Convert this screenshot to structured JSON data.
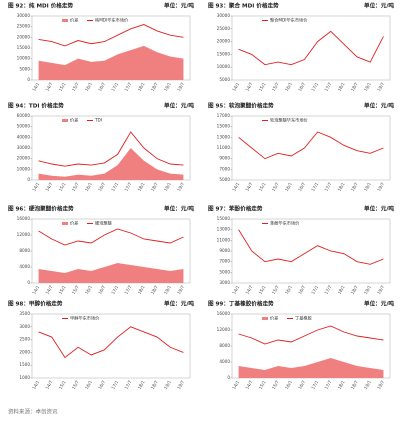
{
  "chart_data": [
    {
      "type": "line",
      "title": "图 92：纯 MDI 价格走势",
      "unit": "单位：元/吨",
      "categories": [
        "14/1",
        "14/7",
        "15/1",
        "15/7",
        "16/1",
        "16/7",
        "17/1",
        "17/7",
        "18/1",
        "18/7",
        "19/1",
        "19/7"
      ],
      "ylim": [
        0,
        30000
      ],
      "yticks": [
        0,
        5000,
        10000,
        15000,
        20000,
        25000,
        30000
      ],
      "series": [
        {
          "name": "价差",
          "type": "area",
          "color": "#f08080",
          "values": [
            9000,
            8000,
            7000,
            10000,
            8500,
            9000,
            12000,
            14000,
            16000,
            13000,
            11000,
            10000
          ]
        },
        {
          "name": "纯MDI华东市场价",
          "type": "line",
          "color": "#e02020",
          "values": [
            19000,
            18000,
            16000,
            18500,
            17000,
            18000,
            21000,
            24000,
            26000,
            23000,
            21000,
            20000
          ]
        }
      ]
    },
    {
      "type": "line",
      "title": "图 93：聚合 MDI 价格走势",
      "unit": "单位：元/吨",
      "categories": [
        "14/1",
        "14/7",
        "15/1",
        "15/7",
        "16/1",
        "16/7",
        "17/1",
        "17/7",
        "18/1",
        "18/7",
        "19/1",
        "19/7"
      ],
      "ylim": [
        5000,
        30000
      ],
      "yticks": [
        5000,
        10000,
        15000,
        20000,
        25000,
        30000
      ],
      "series": [
        {
          "name": "聚合MDI华东市场价",
          "type": "line",
          "color": "#e02020",
          "values": [
            17000,
            15000,
            11000,
            12000,
            11000,
            13000,
            20000,
            24000,
            19000,
            14000,
            12000,
            22000
          ]
        }
      ]
    },
    {
      "type": "line",
      "title": "图 94：TDI 价格走势",
      "unit": "单位：元/吨",
      "categories": [
        "14/1",
        "14/7",
        "15/1",
        "15/7",
        "16/1",
        "16/7",
        "17/1",
        "17/7",
        "18/1",
        "18/7",
        "19/1",
        "19/7"
      ],
      "ylim": [
        0,
        60000
      ],
      "yticks": [
        0,
        10000,
        20000,
        30000,
        40000,
        50000,
        60000
      ],
      "series": [
        {
          "name": "价差",
          "type": "area",
          "color": "#f08080",
          "values": [
            6000,
            4000,
            3000,
            5000,
            4000,
            6000,
            14000,
            30000,
            18000,
            10000,
            6000,
            5000
          ]
        },
        {
          "name": "TDI",
          "type": "line",
          "color": "#e02020",
          "values": [
            18000,
            15000,
            13000,
            15000,
            14000,
            16000,
            24000,
            45000,
            30000,
            20000,
            15000,
            14000
          ]
        }
      ]
    },
    {
      "type": "line",
      "title": "图 95：软泡聚醚价格走势",
      "unit": "单位：元/吨",
      "categories": [
        "14/1",
        "14/7",
        "15/1",
        "15/7",
        "16/1",
        "16/7",
        "17/1",
        "17/7",
        "18/1",
        "18/7",
        "19/1",
        "19/7"
      ],
      "ylim": [
        5000,
        17000
      ],
      "yticks": [
        5000,
        7000,
        9000,
        11000,
        13000,
        15000,
        17000
      ],
      "series": [
        {
          "name": "软泡聚醚华东市场价",
          "type": "line",
          "color": "#e02020",
          "values": [
            13000,
            11000,
            9000,
            10000,
            9500,
            11000,
            14000,
            13000,
            11500,
            10500,
            10000,
            11000
          ]
        }
      ]
    },
    {
      "type": "line",
      "title": "图 96：硬泡聚醚价格走势",
      "unit": "单位：元/吨",
      "categories": [
        "14/1",
        "14/7",
        "15/1",
        "15/7",
        "16/1",
        "16/7",
        "17/1",
        "17/7",
        "18/1",
        "18/7",
        "19/1",
        "19/7"
      ],
      "ylim": [
        0,
        16000
      ],
      "yticks": [
        0,
        4000,
        8000,
        12000,
        16000
      ],
      "series": [
        {
          "name": "价差",
          "type": "area",
          "color": "#f08080",
          "values": [
            3500,
            3000,
            2500,
            3500,
            3000,
            4000,
            5000,
            4500,
            4000,
            3500,
            3000,
            3500
          ]
        },
        {
          "name": "硬泡聚醚",
          "type": "line",
          "color": "#e02020",
          "values": [
            13000,
            11000,
            9500,
            10500,
            10000,
            12000,
            13500,
            12500,
            11000,
            10500,
            10000,
            11500
          ]
        }
      ]
    },
    {
      "type": "line",
      "title": "图 97：苯酚价格走势",
      "unit": "单位：元/吨",
      "categories": [
        "14/1",
        "14/7",
        "15/1",
        "15/7",
        "16/1",
        "16/7",
        "17/1",
        "17/7",
        "18/1",
        "18/7",
        "19/1",
        "19/7"
      ],
      "ylim": [
        3000,
        15000
      ],
      "yticks": [
        3000,
        5000,
        7000,
        9000,
        11000,
        13000,
        15000
      ],
      "series": [
        {
          "name": "苯酚华东市场价",
          "type": "line",
          "color": "#e02020",
          "values": [
            13000,
            9000,
            7000,
            7500,
            7000,
            8500,
            10000,
            9000,
            8500,
            7000,
            6500,
            7500
          ]
        }
      ]
    },
    {
      "type": "line",
      "title": "图 98：甲醇价格走势",
      "unit": "单位：元/吨",
      "categories": [
        "14/1",
        "14/7",
        "15/1",
        "15/7",
        "16/1",
        "16/7",
        "17/1",
        "17/7",
        "18/1",
        "18/7",
        "19/1",
        "19/7"
      ],
      "ylim": [
        1000,
        3500
      ],
      "yticks": [
        1000,
        1500,
        2000,
        2500,
        3000,
        3500
      ],
      "series": [
        {
          "name": "甲醇华东市场价",
          "type": "line",
          "color": "#e02020",
          "values": [
            2800,
            2600,
            1800,
            2200,
            1900,
            2100,
            2600,
            3000,
            2800,
            2600,
            2200,
            2000
          ]
        }
      ]
    },
    {
      "type": "line",
      "title": "图 99：丁基橡胶价格走势",
      "unit": "单位：元/吨",
      "categories": [
        "14/1",
        "14/7",
        "15/1",
        "15/7",
        "16/1",
        "16/7",
        "17/1",
        "17/7",
        "18/1",
        "18/7",
        "19/1",
        "19/7"
      ],
      "ylim": [
        0,
        16000
      ],
      "yticks": [
        0,
        4000,
        8000,
        12000,
        16000
      ],
      "series": [
        {
          "name": "价差",
          "type": "area",
          "color": "#f08080",
          "values": [
            3000,
            2500,
            2000,
            3000,
            2500,
            3000,
            4000,
            5000,
            4000,
            3000,
            2500,
            2000
          ]
        },
        {
          "name": "丁基橡胶",
          "type": "line",
          "color": "#e02020",
          "values": [
            11000,
            10000,
            8500,
            9500,
            9000,
            10500,
            12000,
            13000,
            11500,
            10500,
            10000,
            9500
          ]
        }
      ]
    }
  ],
  "footer": "资料来源：卓创资讯"
}
